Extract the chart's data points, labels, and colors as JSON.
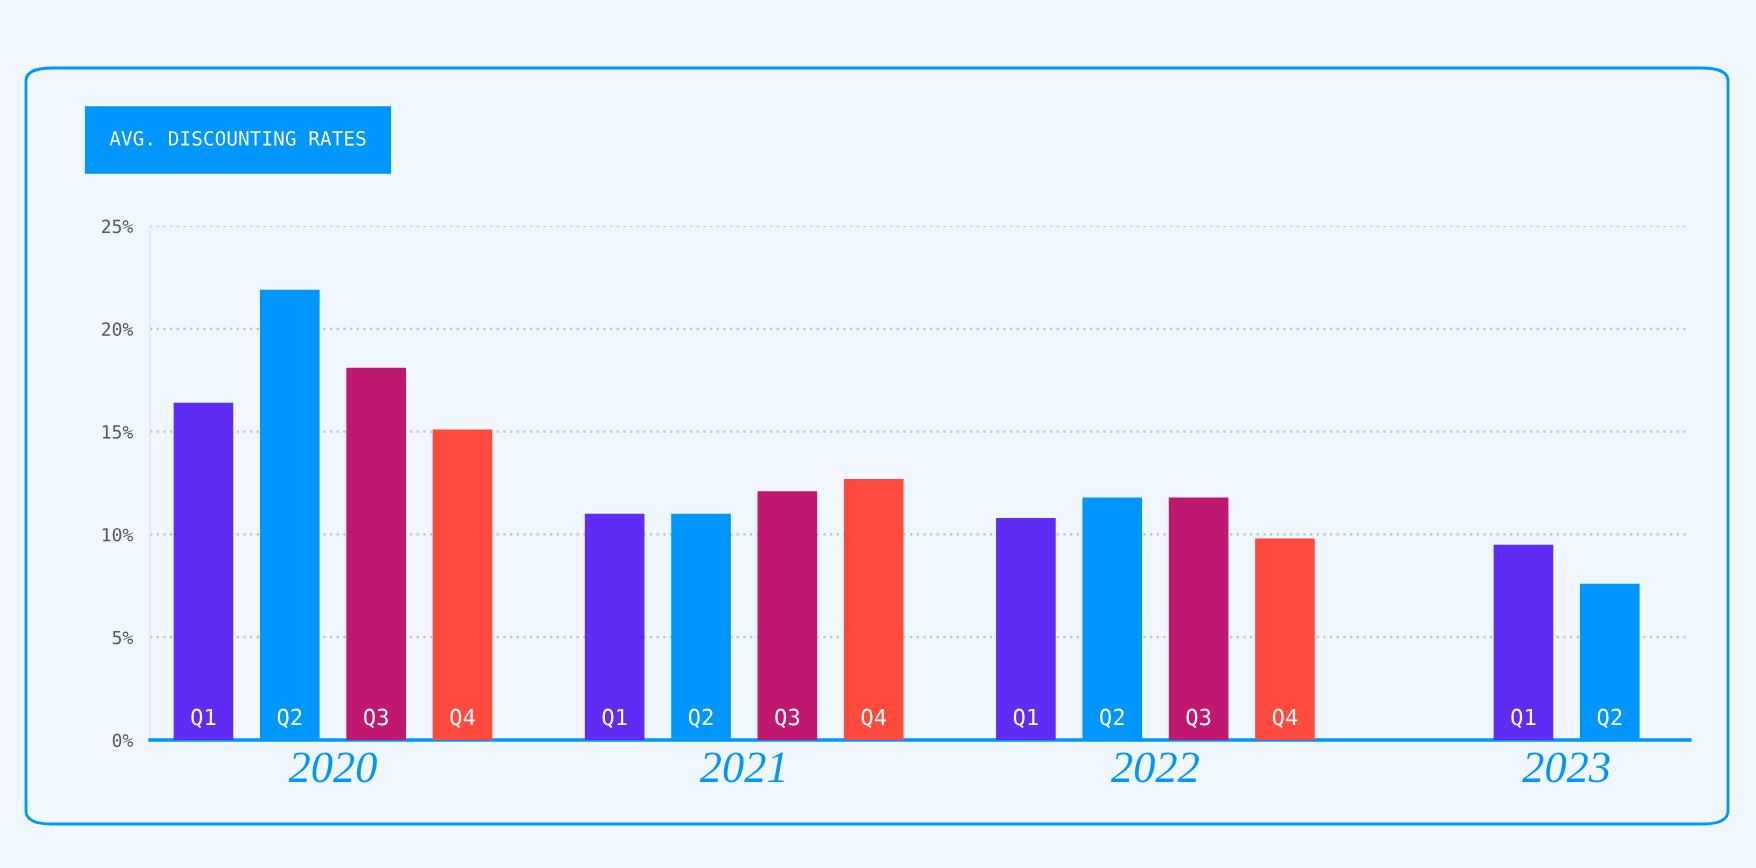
{
  "chart_data": {
    "type": "bar",
    "title": "AVG. DISCOUNTING RATES",
    "categories": [
      "2020",
      "2021",
      "2022",
      "2023"
    ],
    "series": [
      {
        "name": "Q1",
        "color": "#5f2cf5",
        "values": [
          16.4,
          11.0,
          10.8,
          9.5
        ]
      },
      {
        "name": "Q2",
        "color": "#0096ff",
        "values": [
          21.9,
          11.0,
          11.8,
          7.6
        ]
      },
      {
        "name": "Q3",
        "color": "#c0186f",
        "values": [
          18.1,
          12.1,
          11.8,
          null
        ]
      },
      {
        "name": "Q4",
        "color": "#ff4a3d",
        "values": [
          15.1,
          12.7,
          9.8,
          null
        ]
      }
    ],
    "ylim": [
      0,
      25
    ],
    "yticks": [
      {
        "value": 0,
        "label": "0%"
      },
      {
        "value": 5,
        "label": "5%"
      },
      {
        "value": 10,
        "label": "10%"
      },
      {
        "value": 15,
        "label": "15%"
      },
      {
        "value": 20,
        "label": "20%"
      },
      {
        "value": 25,
        "label": "25%"
      }
    ],
    "grid": "y",
    "legend": false
  }
}
